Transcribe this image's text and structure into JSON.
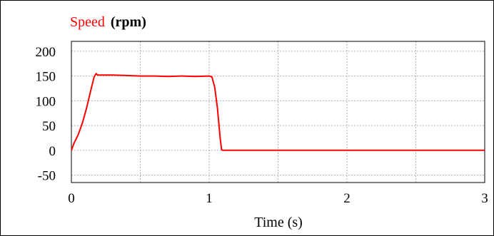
{
  "chart_data": {
    "type": "line",
    "title_series": "Speed",
    "title_unit": "(rpm)",
    "xlabel": "Time (s)",
    "ylabel": "",
    "xlim": [
      0,
      3
    ],
    "ylim": [
      -65,
      220
    ],
    "x_ticks": [
      0,
      1,
      2,
      3
    ],
    "x_tick_labels": [
      "0",
      "1",
      "2",
      "3"
    ],
    "y_ticks": [
      200,
      150,
      100,
      50,
      0,
      -50
    ],
    "y_tick_labels": [
      "200",
      "150",
      "100",
      "50",
      "0",
      "-50"
    ],
    "grid": true,
    "grid_x": [
      0.5,
      1,
      1.5,
      2,
      2.5
    ],
    "grid_y": [
      200,
      150,
      100,
      50,
      0,
      -50
    ],
    "series": [
      {
        "name": "Speed",
        "color": "#ff0000",
        "x": [
          0,
          0.02,
          0.05,
          0.08,
          0.11,
          0.14,
          0.165,
          0.18,
          0.19,
          0.21,
          0.3,
          0.4,
          0.5,
          0.6,
          0.7,
          0.8,
          0.9,
          1.0,
          1.02,
          1.04,
          1.06,
          1.08,
          1.09,
          1.1,
          1.3,
          1.6,
          2.0,
          2.5,
          3.0
        ],
        "y": [
          0,
          15,
          32,
          55,
          85,
          120,
          148,
          155,
          152,
          152,
          152,
          151,
          150,
          150,
          149,
          150,
          149,
          150,
          148,
          128,
          85,
          25,
          1,
          0,
          0,
          0,
          0,
          0,
          0
        ]
      }
    ]
  }
}
